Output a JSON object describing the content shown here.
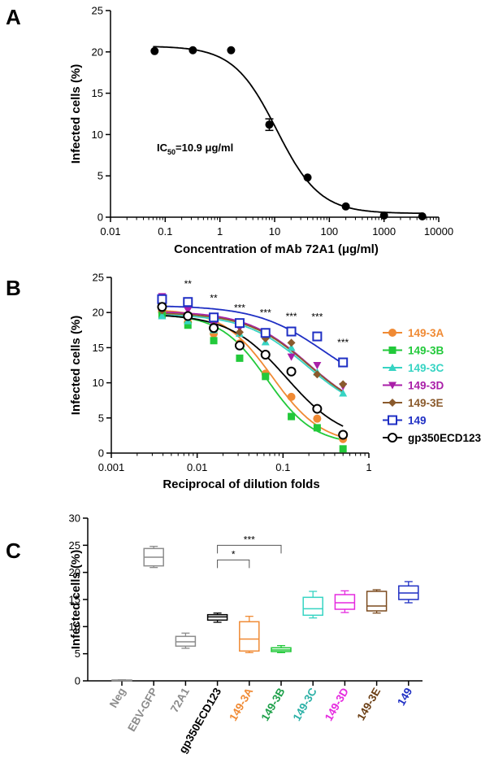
{
  "chart_data": [
    {
      "panel": "A",
      "type": "scatter",
      "xscale": "log",
      "xlabel": "Concentration of mAb 72A1 (μg/ml)",
      "ylabel": "Infected cells (%)",
      "xlim": [
        0.01,
        10000
      ],
      "ylim": [
        0,
        25
      ],
      "xticks": [
        "0.01",
        "0.1",
        "1",
        "10",
        "100",
        "1000",
        "10000"
      ],
      "yticks": [
        "0",
        "5",
        "10",
        "15",
        "20",
        "25"
      ],
      "series": [
        {
          "name": "mAb 72A1",
          "color": "#000000",
          "marker": "circle",
          "x": [
            0.064,
            0.32,
            1.6,
            8,
            40,
            200,
            1000,
            5000
          ],
          "y": [
            20.1,
            20.2,
            20.2,
            11.2,
            4.8,
            1.3,
            0.2,
            0.1
          ],
          "err": [
            0,
            0,
            0,
            0.7,
            0,
            0,
            0,
            0
          ],
          "fit": {
            "top": 20.7,
            "bottom": 0.45,
            "ic50": 10.9,
            "hill": 1.1
          }
        }
      ],
      "annotation_prefix": "IC",
      "annotation_sub": "50",
      "annotation_suffix": "=10.9 μg/ml"
    },
    {
      "panel": "B",
      "type": "scatter",
      "xscale": "log",
      "xlabel": "Reciprocal of dilution folds",
      "ylabel": "Infected cells (%)",
      "xlim": [
        0.001,
        1
      ],
      "ylim": [
        0,
        25
      ],
      "xticks": [
        "0.001",
        "0.01",
        "0.1",
        "1"
      ],
      "yticks": [
        "0",
        "5",
        "10",
        "15",
        "20",
        "25"
      ],
      "x": [
        0.0039,
        0.0078,
        0.0156,
        0.03125,
        0.0625,
        0.125,
        0.25,
        0.5
      ],
      "significance": [
        "**",
        "**",
        "***",
        "***",
        "***",
        "***",
        "***"
      ],
      "significance_x": [
        0.0078,
        0.0156,
        0.03125,
        0.0625,
        0.125,
        0.25,
        0.5
      ],
      "significance_y": [
        23.6,
        21.6,
        20.2,
        19.5,
        19.0,
        18.9,
        15.3
      ],
      "series": [
        {
          "name": "149-3A",
          "color": "#F08A34",
          "marker": "circle",
          "y": [
            20.1,
            18.6,
            17.0,
            15.6,
            11.3,
            8.0,
            4.9,
            2.0
          ],
          "fit": {
            "top": 20.5,
            "bottom": 1.2,
            "ec50": 0.075,
            "hill": 1.5
          }
        },
        {
          "name": "149-3B",
          "color": "#22C93A",
          "marker": "square",
          "y": [
            19.6,
            18.2,
            16.0,
            13.5,
            10.9,
            5.2,
            3.6,
            0.6
          ],
          "fit": {
            "top": 19.8,
            "bottom": 1.2,
            "ec50": 0.065,
            "hill": 1.6
          }
        },
        {
          "name": "149-3C",
          "color": "#37D4C3",
          "marker": "triangle-up",
          "y": [
            19.5,
            18.8,
            17.5,
            17.0,
            15.8,
            15.0,
            11.5,
            8.5
          ],
          "fit": {
            "top": 19.8,
            "bottom": 5.0,
            "ec50": 0.19,
            "hill": 1.2
          }
        },
        {
          "name": "149-3D",
          "color": "#A91EA8",
          "marker": "triangle-down",
          "y": [
            22.3,
            20.3,
            18.2,
            17.8,
            16.5,
            13.7,
            12.5,
            9.5
          ],
          "fit": {
            "top": 20.2,
            "bottom": 5.0,
            "ec50": 0.2,
            "hill": 1.2
          }
        },
        {
          "name": "149-3E",
          "color": "#8A5A2C",
          "marker": "diamond",
          "y": [
            20.3,
            19.5,
            18.1,
            17.2,
            16.3,
            15.7,
            11.2,
            9.8
          ],
          "fit": {
            "top": 20.0,
            "bottom": 5.0,
            "ec50": 0.2,
            "hill": 1.2
          }
        },
        {
          "name": "149",
          "color": "#1F2FC4",
          "marker": "open-square",
          "y": [
            21.9,
            21.5,
            19.3,
            18.5,
            17.1,
            17.3,
            16.6,
            12.9
          ],
          "fit": {
            "top": 21.0,
            "bottom": 8.0,
            "ec50": 0.3,
            "hill": 1.1
          }
        },
        {
          "name": "gp350ECD123",
          "color": "#000000",
          "marker": "open-circle",
          "y": [
            20.8,
            19.5,
            17.8,
            15.3,
            14.0,
            11.6,
            6.3,
            2.6
          ],
          "fit": {
            "top": 19.8,
            "bottom": 1.6,
            "ec50": 0.11,
            "hill": 1.3
          }
        }
      ]
    },
    {
      "panel": "C",
      "type": "box",
      "xlabel": "",
      "ylabel": "Infected cells (%)",
      "ylim": [
        0,
        30
      ],
      "yticks": [
        "0",
        "5",
        "10",
        "15",
        "20",
        "25",
        "30"
      ],
      "categories": [
        "Neg",
        "EBV-GFP",
        "72A1",
        "gp350ECD123",
        "149-3A",
        "149-3B",
        "149-3C",
        "149-3D",
        "149-3E",
        "149"
      ],
      "colors": [
        "#8C8C8C",
        "#8C8C8C",
        "#8C8C8C",
        "#000000",
        "#F08A34",
        "#22C93A",
        "#37D4C3",
        "#E52ADF",
        "#7B4A1E",
        "#1F2FC4"
      ],
      "label_colors": [
        "#8C8C8C",
        "#8C8C8C",
        "#8C8C8C",
        "#000000",
        "#F08A34",
        "#1EA04A",
        "#2BB0A6",
        "#E52ADF",
        "#6B3E14",
        "#1F2FC4"
      ],
      "boxes": [
        {
          "min": 0.05,
          "q1": 0.05,
          "median": 0.1,
          "q3": 0.15,
          "max": 0.2
        },
        {
          "min": 20.9,
          "q1": 21.2,
          "median": 22.8,
          "q3": 24.4,
          "max": 24.8
        },
        {
          "min": 6.0,
          "q1": 6.4,
          "median": 7.2,
          "q3": 8.2,
          "max": 8.8
        },
        {
          "min": 10.8,
          "q1": 11.2,
          "median": 11.8,
          "q3": 12.2,
          "max": 12.5
        },
        {
          "min": 5.2,
          "q1": 5.5,
          "median": 7.7,
          "q3": 10.9,
          "max": 11.9
        },
        {
          "min": 5.2,
          "q1": 5.4,
          "median": 5.7,
          "q3": 6.1,
          "max": 6.5
        },
        {
          "min": 11.6,
          "q1": 12.1,
          "median": 13.3,
          "q3": 15.4,
          "max": 16.5
        },
        {
          "min": 12.6,
          "q1": 13.2,
          "median": 14.4,
          "q3": 15.9,
          "max": 16.6
        },
        {
          "min": 12.5,
          "q1": 12.9,
          "median": 13.8,
          "q3": 16.5,
          "max": 16.8
        },
        {
          "min": 14.4,
          "q1": 15.0,
          "median": 16.2,
          "q3": 17.5,
          "max": 18.3
        }
      ],
      "brackets": [
        {
          "from": "gp350ECD123",
          "to": "149-3A",
          "label": "*",
          "y": 22.3
        },
        {
          "from": "gp350ECD123",
          "to": "149-3B",
          "label": "***",
          "y": 25.0
        }
      ]
    }
  ],
  "panels": {
    "a_letter": "A",
    "b_letter": "B",
    "c_letter": "C"
  }
}
